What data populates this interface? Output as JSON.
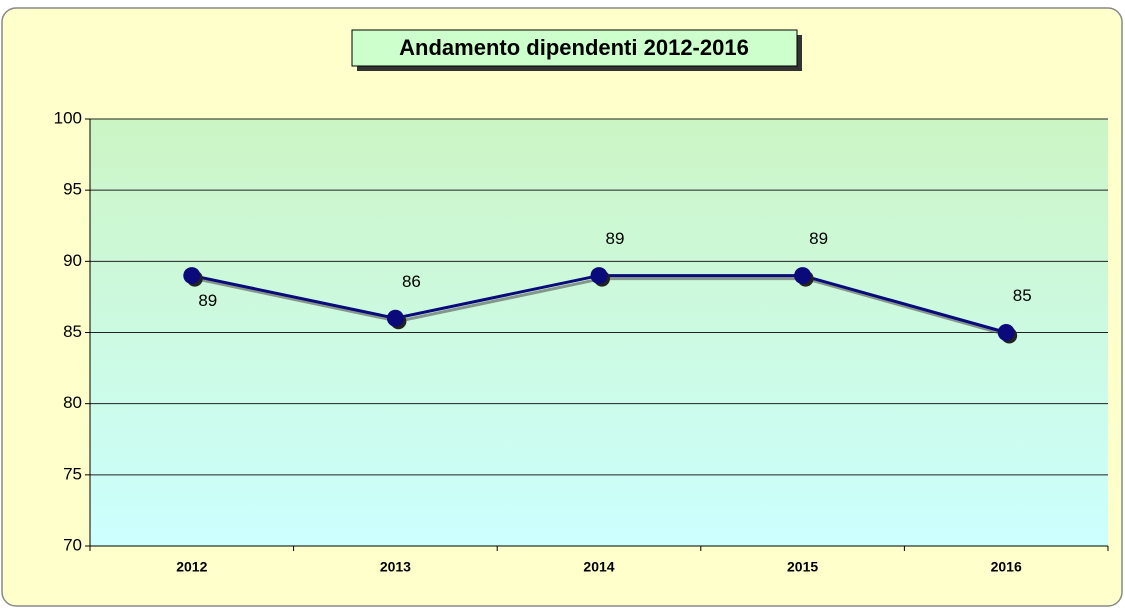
{
  "chart_data": {
    "type": "line",
    "title": "Andamento dipendenti 2012-2016",
    "categories": [
      "2012",
      "2013",
      "2014",
      "2015",
      "2016"
    ],
    "values": [
      89,
      86,
      89,
      89,
      85
    ],
    "color": "#0a0a7a",
    "ylim": [
      70,
      100
    ],
    "yticks": [
      70,
      75,
      80,
      85,
      90,
      95,
      100
    ],
    "grid": true
  }
}
